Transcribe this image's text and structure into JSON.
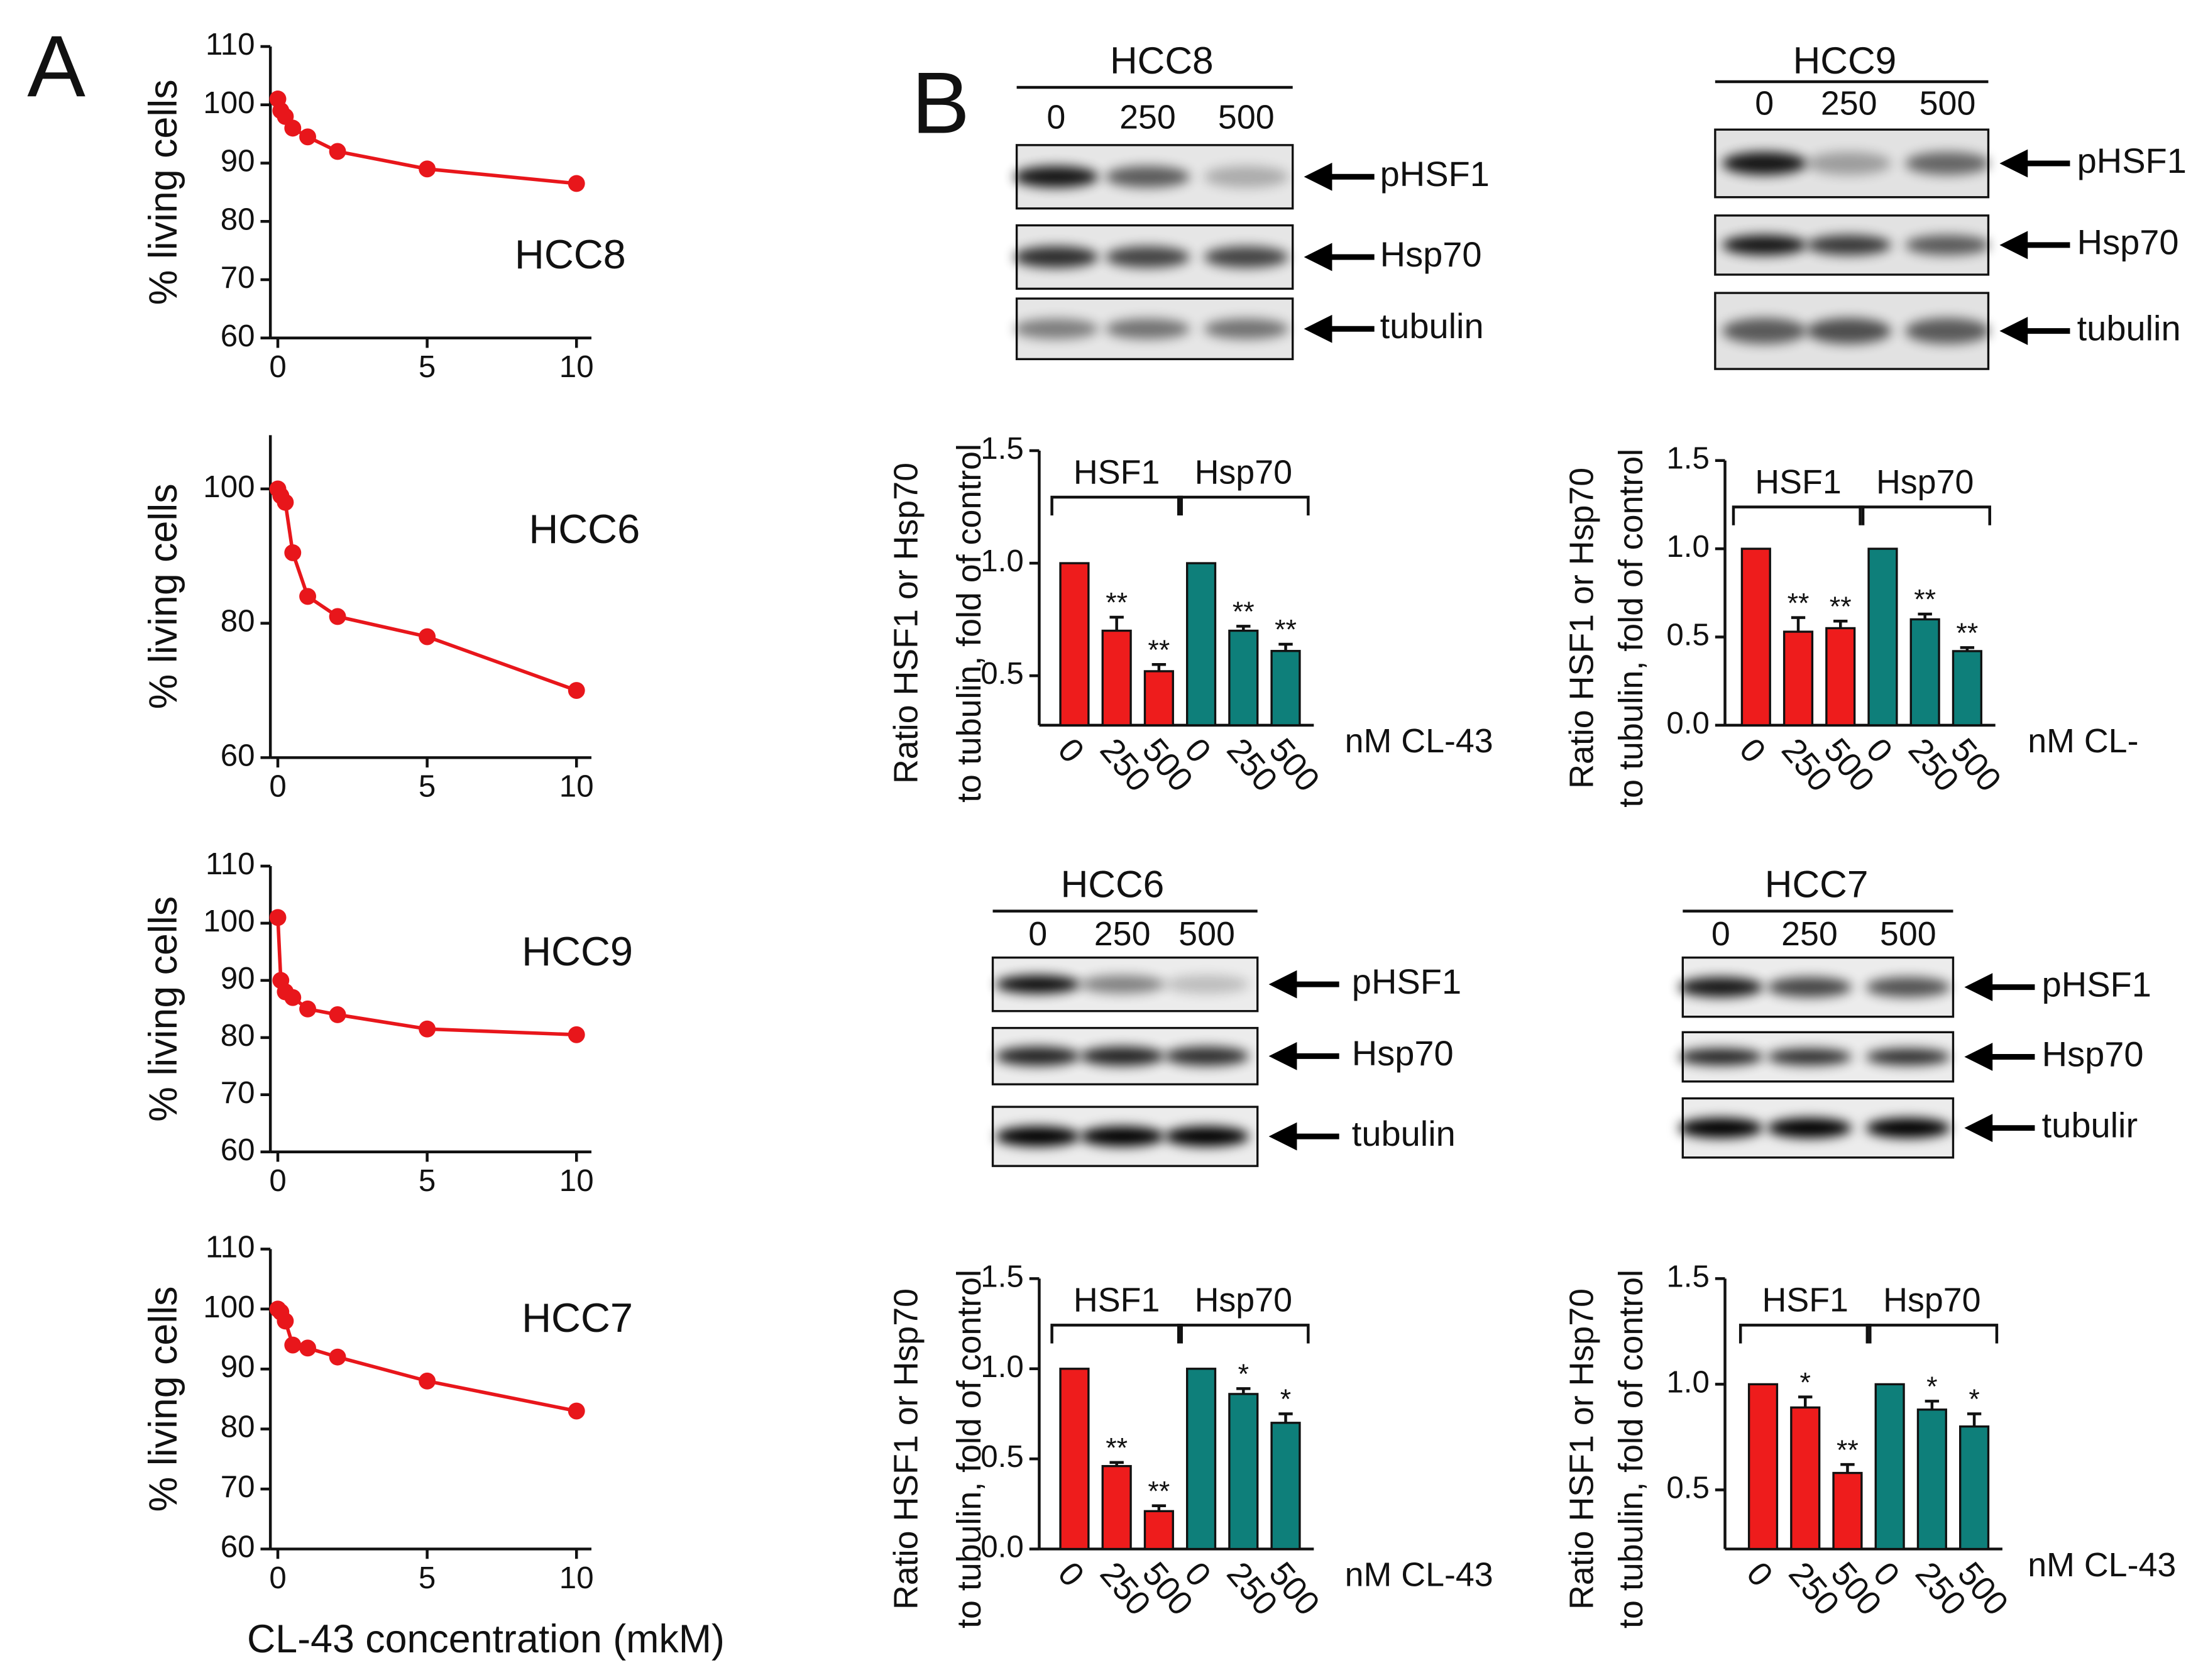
{
  "panel_labels": [
    "A",
    "B"
  ],
  "chart_data": [
    {
      "type": "line",
      "annotation": "HCC8",
      "ylabel": "% living cells",
      "x": [
        0,
        0.1,
        0.25,
        0.5,
        1,
        2,
        5,
        10
      ],
      "series": [
        {
          "color": "#e8161b",
          "values": [
            101,
            99,
            98,
            96,
            94.5,
            92,
            89,
            86.5
          ]
        }
      ],
      "xlim": [
        -0.25,
        10.5
      ],
      "ylim": [
        60,
        110
      ],
      "xticks": [
        0,
        5,
        10
      ],
      "yticks": [
        60,
        70,
        80,
        90,
        100,
        110
      ]
    },
    {
      "type": "line",
      "annotation": "HCC6",
      "ylabel": "% living cells",
      "x": [
        0,
        0.1,
        0.25,
        0.5,
        1,
        2,
        5,
        10
      ],
      "series": [
        {
          "color": "#e8161b",
          "values": [
            100,
            99,
            98,
            90.5,
            84,
            81,
            78,
            70
          ]
        }
      ],
      "xlim": [
        -0.25,
        10.5
      ],
      "ylim": [
        60,
        108
      ],
      "xticks": [
        0,
        5,
        10
      ],
      "yticks": [
        60,
        80,
        100
      ]
    },
    {
      "type": "line",
      "annotation": "HCC9",
      "ylabel": "% living cells",
      "x": [
        0,
        0.1,
        0.25,
        0.5,
        1,
        2,
        5,
        10
      ],
      "series": [
        {
          "color": "#e8161b",
          "values": [
            101,
            90,
            88,
            87,
            85,
            84,
            81.5,
            80.5
          ]
        }
      ],
      "xlim": [
        -0.25,
        10.5
      ],
      "ylim": [
        60,
        110
      ],
      "xticks": [
        0,
        5,
        10
      ],
      "yticks": [
        60,
        70,
        80,
        90,
        100,
        110
      ]
    },
    {
      "type": "line",
      "annotation": "HCC7",
      "ylabel": "% living cells",
      "xlabel": "CL-43 concentration (mkM)",
      "x": [
        0,
        0.1,
        0.25,
        0.5,
        1,
        2,
        5,
        10
      ],
      "series": [
        {
          "color": "#e8161b",
          "values": [
            100,
            99.5,
            98,
            94,
            93.5,
            92,
            88,
            83
          ]
        }
      ],
      "xlim": [
        -0.25,
        10.5
      ],
      "ylim": [
        60,
        110
      ],
      "xticks": [
        0,
        5,
        10
      ],
      "yticks": [
        60,
        70,
        80,
        90,
        100,
        110
      ]
    },
    {
      "type": "bar",
      "ylabel": [
        "Ratio HSF1 or Hsp70",
        "to tubulin, fold of control"
      ],
      "xlabel": "nM CL-43",
      "categories": [
        "0",
        "250",
        "500"
      ],
      "series": [
        {
          "name": "HSF1",
          "color": "#ee1c1c",
          "values": [
            1,
            0.7,
            0.52
          ],
          "errors": [
            0,
            0.06,
            0.03
          ],
          "significance": [
            null,
            "**",
            "**"
          ]
        },
        {
          "name": "Hsp70",
          "color": "#0e7f7a",
          "values": [
            1,
            0.7,
            0.61
          ],
          "errors": [
            0,
            0.02,
            0.03
          ],
          "significance": [
            null,
            "**",
            "**"
          ]
        }
      ],
      "ylim": [
        0.28,
        1.5
      ],
      "yticks": [
        0.5,
        {
          "value": 1,
          "label": "1.0"
        },
        1.5
      ]
    },
    {
      "type": "bar",
      "ylabel": [
        "Ratio HSF1 or Hsp70",
        "to tubulin, fold of control"
      ],
      "xlabel": "nM CL-",
      "categories": [
        "0",
        "250",
        "500"
      ],
      "series": [
        {
          "name": "HSF1",
          "color": "#ee1c1c",
          "values": [
            1,
            0.53,
            0.55
          ],
          "errors": [
            0,
            0.08,
            0.04
          ],
          "significance": [
            null,
            "**",
            "**"
          ]
        },
        {
          "name": "Hsp70",
          "color": "#0e7f7a",
          "values": [
            1,
            0.6,
            0.42
          ],
          "errors": [
            0,
            0.03,
            0.02
          ],
          "significance": [
            null,
            "**",
            "**"
          ]
        }
      ],
      "ylim": [
        0,
        1.5
      ],
      "yticks": [
        {
          "value": 0,
          "label": "0.0"
        },
        0.5,
        {
          "value": 1,
          "label": "1.0"
        },
        1.5
      ]
    },
    {
      "type": "bar",
      "ylabel": [
        "Ratio HSF1 or Hsp70",
        "to tubulin, fold of control"
      ],
      "xlabel": "nM CL-43",
      "categories": [
        "0",
        "250",
        "500"
      ],
      "series": [
        {
          "name": "HSF1",
          "color": "#ee1c1c",
          "values": [
            1,
            0.46,
            0.21
          ],
          "errors": [
            0,
            0.02,
            0.03
          ],
          "significance": [
            null,
            "**",
            "**"
          ]
        },
        {
          "name": "Hsp70",
          "color": "#0e7f7a",
          "values": [
            1,
            0.86,
            0.7
          ],
          "errors": [
            0,
            0.03,
            0.05
          ],
          "significance": [
            null,
            "*",
            "*"
          ]
        }
      ],
      "ylim": [
        0,
        1.5
      ],
      "yticks": [
        {
          "value": 0,
          "label": "0.0"
        },
        0.5,
        {
          "value": 1,
          "label": "1.0"
        },
        1.5
      ]
    },
    {
      "type": "bar",
      "ylabel": [
        "Ratio HSF1 or Hsp70",
        "to tubulin, fold of control"
      ],
      "xlabel": "nM CL-43",
      "categories": [
        "0",
        "250",
        "500"
      ],
      "series": [
        {
          "name": "HSF1",
          "color": "#ee1c1c",
          "values": [
            1,
            0.89,
            0.58
          ],
          "errors": [
            0,
            0.05,
            0.04
          ],
          "significance": [
            null,
            "*",
            "**"
          ]
        },
        {
          "name": "Hsp70",
          "color": "#0e7f7a",
          "values": [
            1,
            0.88,
            0.8
          ],
          "errors": [
            0,
            0.04,
            0.06
          ],
          "significance": [
            null,
            "*",
            "*"
          ]
        }
      ],
      "ylim": [
        0.22,
        1.5
      ],
      "yticks": [
        0.5,
        {
          "value": 1,
          "label": "1.0"
        },
        1.5
      ]
    }
  ],
  "blots": [
    {
      "title": "HCC8",
      "lanes": [
        "0",
        "250",
        "500"
      ],
      "rows": [
        "pHSF1",
        "Hsp70",
        "tubulin"
      ]
    },
    {
      "title": "HCC9",
      "lanes": [
        "0",
        "250",
        "500"
      ],
      "rows": [
        "pHSF1",
        "Hsp70",
        "tubulin"
      ]
    },
    {
      "title": "HCC6",
      "lanes": [
        "0",
        "250",
        "500"
      ],
      "rows": [
        "pHSF1",
        "Hsp70",
        "tubulin"
      ]
    },
    {
      "title": "HCC7",
      "lanes": [
        "0",
        "250",
        "500"
      ],
      "rows": [
        "pHSF1",
        "Hsp70",
        "tubulir"
      ]
    }
  ]
}
